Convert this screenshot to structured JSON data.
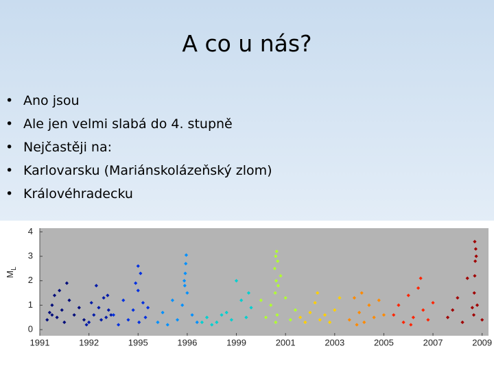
{
  "title": "A co u nás?",
  "bullets": [
    "Ano jsou",
    "Ale jen velmi slabá do 4. stupně",
    "Nejčastěji na:",
    "Karlovarsku (Mariánskolázeňský zlom)",
    "Královéhradecku"
  ],
  "chart_data": {
    "type": "scatter",
    "ylabel": {
      "main": "M",
      "sub": "L"
    },
    "background": "#b4b4b4",
    "ylim": [
      -0.25,
      4.15
    ],
    "yticks": [
      0,
      1,
      2,
      3,
      4
    ],
    "xlim": [
      0,
      9.13
    ],
    "xticks": [
      {
        "value": 0,
        "label": "1991"
      },
      {
        "value": 1,
        "label": "1992"
      },
      {
        "value": 2,
        "label": "1995"
      },
      {
        "value": 3,
        "label": "1996"
      },
      {
        "value": 4,
        "label": "1999"
      },
      {
        "value": 5,
        "label": "2001"
      },
      {
        "value": 6,
        "label": "2003"
      },
      {
        "value": 7,
        "label": "2005"
      },
      {
        "value": 8,
        "label": "2007"
      },
      {
        "value": 9,
        "label": "2009"
      }
    ],
    "series": [
      {
        "color": "#000c7a",
        "x": [
          0.15,
          0.2,
          0.25,
          0.3,
          0.35,
          0.45,
          0.5,
          0.6,
          0.7,
          0.8,
          0.9,
          0.55,
          0.25,
          0.4
        ],
        "values": [
          0.4,
          0.7,
          1.0,
          1.4,
          0.5,
          0.8,
          0.3,
          1.2,
          0.6,
          0.9,
          0.4,
          1.9,
          0.6,
          1.6
        ]
      },
      {
        "color": "#001aa8",
        "x": [
          1.0,
          1.1,
          1.2,
          1.3,
          1.35,
          1.4,
          1.25,
          1.05,
          1.15,
          1.45,
          1.38,
          0.95
        ],
        "values": [
          0.3,
          0.6,
          0.9,
          1.3,
          0.5,
          0.8,
          0.4,
          1.1,
          1.8,
          0.6,
          1.4,
          0.2
        ]
      },
      {
        "color": "#0030e0",
        "x": [
          1.5,
          1.6,
          1.7,
          1.8,
          1.9,
          2.0,
          2.05,
          2.1,
          2.0,
          2.15,
          2.2,
          1.95,
          2.02
        ],
        "values": [
          0.6,
          0.2,
          1.2,
          0.4,
          0.8,
          1.6,
          2.3,
          1.1,
          2.6,
          0.5,
          0.9,
          1.9,
          0.3
        ]
      },
      {
        "color": "#0090ff",
        "x": [
          2.4,
          2.5,
          2.6,
          2.7,
          2.8,
          2.9,
          2.95,
          2.96,
          2.97,
          2.98,
          3.0,
          3.1,
          3.2,
          2.94
        ],
        "values": [
          0.3,
          0.7,
          0.2,
          1.2,
          0.4,
          1.0,
          1.8,
          2.3,
          2.7,
          3.05,
          1.5,
          0.6,
          0.3,
          2.0
        ]
      },
      {
        "color": "#00d0d0",
        "x": [
          3.3,
          3.5,
          3.7,
          3.9,
          4.0,
          4.1,
          4.2,
          4.3,
          3.6,
          3.8,
          4.25,
          3.4
        ],
        "values": [
          0.3,
          0.2,
          0.6,
          0.4,
          2.0,
          1.2,
          0.5,
          0.9,
          0.3,
          0.7,
          1.5,
          0.5
        ]
      },
      {
        "color": "#b0ff30",
        "x": [
          4.5,
          4.6,
          4.7,
          4.78,
          4.8,
          4.82,
          4.84,
          4.8,
          4.79,
          4.85,
          4.9,
          5.0,
          5.1,
          5.2,
          4.81,
          4.83
        ],
        "values": [
          1.2,
          0.5,
          1.0,
          2.5,
          3.0,
          3.2,
          2.8,
          0.3,
          1.5,
          1.8,
          2.2,
          1.3,
          0.4,
          0.8,
          2.0,
          0.6
        ]
      },
      {
        "color": "#ffd000",
        "x": [
          5.3,
          5.4,
          5.5,
          5.6,
          5.7,
          5.8,
          5.9,
          6.0,
          6.1,
          5.65
        ],
        "values": [
          0.5,
          0.3,
          0.7,
          1.1,
          0.4,
          0.6,
          0.3,
          0.8,
          1.3,
          1.5
        ]
      },
      {
        "color": "#ff8a00",
        "x": [
          6.3,
          6.4,
          6.5,
          6.6,
          6.7,
          6.8,
          6.9,
          7.0,
          6.45,
          6.55
        ],
        "values": [
          0.4,
          1.3,
          0.7,
          0.3,
          1.0,
          0.5,
          1.2,
          0.6,
          0.2,
          1.5
        ]
      },
      {
        "color": "#ff2400",
        "x": [
          7.2,
          7.3,
          7.4,
          7.5,
          7.6,
          7.7,
          7.8,
          7.9,
          8.0,
          7.75,
          7.55
        ],
        "values": [
          0.6,
          1.0,
          0.3,
          1.4,
          0.5,
          1.7,
          0.8,
          0.4,
          1.1,
          2.1,
          0.2
        ]
      },
      {
        "color": "#a00000",
        "x": [
          8.3,
          8.4,
          8.5,
          8.6,
          8.7,
          8.8,
          8.84,
          8.85,
          8.86,
          8.87,
          8.85,
          8.9,
          9.0,
          8.83,
          8.88
        ],
        "values": [
          0.5,
          0.8,
          1.3,
          0.3,
          2.1,
          0.9,
          1.5,
          2.2,
          2.8,
          3.3,
          3.6,
          1.0,
          0.4,
          0.6,
          3.0
        ]
      }
    ]
  }
}
